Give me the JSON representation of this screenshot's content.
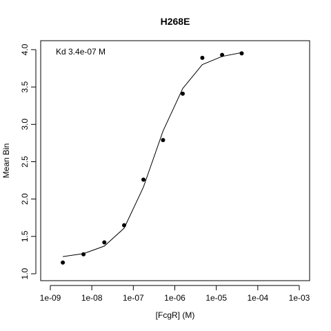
{
  "chart_data": {
    "type": "scatter",
    "title": "H268E",
    "xlabel": "[FcgR] (M)",
    "ylabel": "Mean Bin",
    "x_scale": "log10",
    "xlim": [
      1e-09,
      0.001
    ],
    "ylim": [
      0.9,
      4.1
    ],
    "x_ticks": [
      1e-09,
      1e-08,
      1e-07,
      1e-06,
      1e-05,
      0.0001,
      0.001
    ],
    "x_tick_labels": [
      "1e-09",
      "1e-08",
      "1e-07",
      "1e-06",
      "1e-05",
      "1e-04",
      "1e-03"
    ],
    "y_ticks": [
      1.0,
      1.5,
      2.0,
      2.5,
      3.0,
      3.5,
      4.0
    ],
    "y_tick_labels": [
      "1.0",
      "1.5",
      "2.0",
      "2.5",
      "3.0",
      "3.5",
      "4.0"
    ],
    "annotation": "Kd 3.4e-07 M",
    "grid": false,
    "series": [
      {
        "kind": "points",
        "x": [
          2e-09,
          6.3e-09,
          2e-08,
          6e-08,
          1.75e-07,
          5.2e-07,
          1.55e-06,
          4.6e-06,
          1.38e-05,
          4.1e-05
        ],
        "y": [
          1.15,
          1.26,
          1.42,
          1.65,
          2.26,
          2.79,
          3.41,
          3.89,
          3.93,
          3.95
        ]
      },
      {
        "kind": "fit-line",
        "x": [
          2e-09,
          6.3e-09,
          2e-08,
          6e-08,
          1.75e-07,
          5.2e-07,
          1.55e-06,
          4.6e-06,
          1.38e-05,
          4.1e-05
        ],
        "y": [
          1.23,
          1.27,
          1.37,
          1.61,
          2.16,
          2.91,
          3.48,
          3.8,
          3.91,
          3.96
        ]
      }
    ]
  }
}
